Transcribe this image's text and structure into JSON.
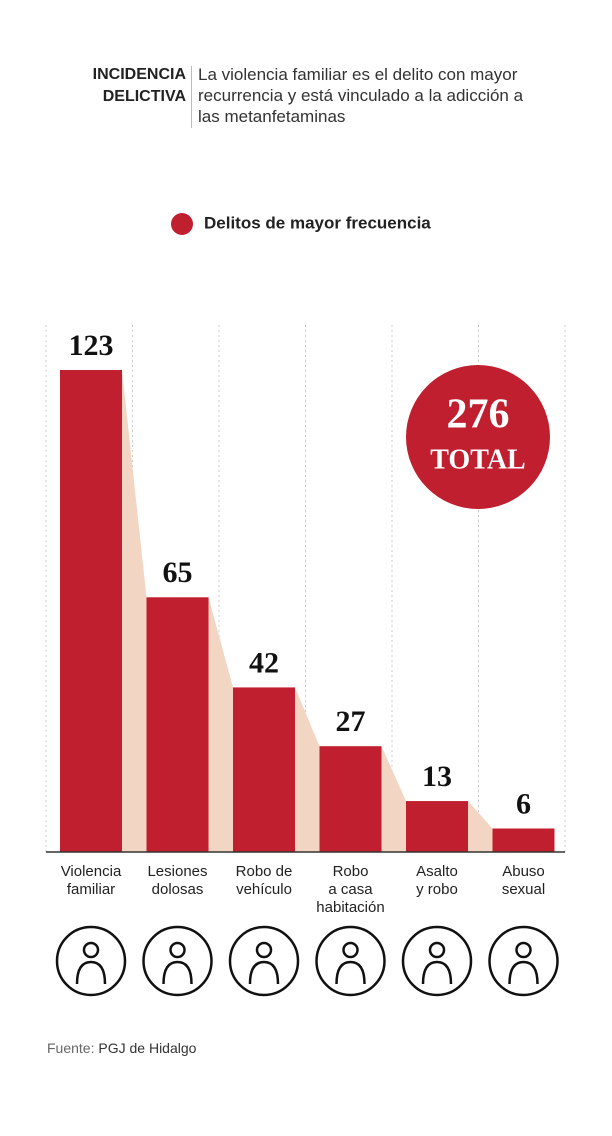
{
  "header": {
    "kicker": "INCIDENCIA\nDELICTIVA",
    "subtitle": "La violencia familiar es el delito con mayor recurrencia y está vinculado a la adicción a las metanfetaminas"
  },
  "chart_data": {
    "type": "bar",
    "categories": [
      "Violencia\nfamiliar",
      "Lesiones\ndolosas",
      "Robo de\nvehículo",
      "Robo\na casa\nhabitación",
      "Asalto\ny robo",
      "Abuso\nsexual"
    ],
    "series": [
      {
        "name": "Delitos de mayor frecuencia",
        "color": "#c01f2f",
        "values": [
          123,
          65,
          42,
          27,
          13,
          6
        ]
      }
    ],
    "total": 276,
    "total_label": "TOTAL",
    "grid": true
  },
  "footer": {
    "source_label": "Fuente:",
    "source": "PGJ de Hidalgo"
  }
}
